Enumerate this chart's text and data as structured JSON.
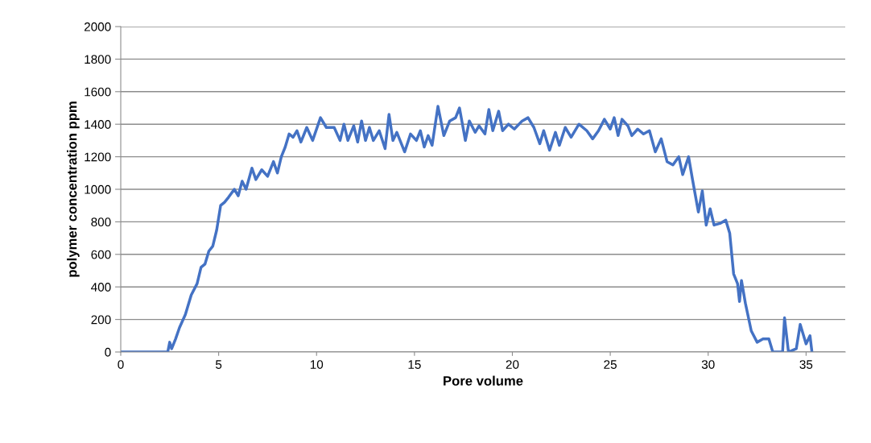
{
  "chart_data": {
    "type": "line",
    "xlabel": "Pore volume",
    "ylabel": "polymer concentration ppm",
    "xlim": [
      0,
      37
    ],
    "ylim": [
      0,
      2000
    ],
    "xticks": [
      0,
      5,
      10,
      15,
      20,
      25,
      30,
      35
    ],
    "yticks": [
      0,
      200,
      400,
      600,
      800,
      1000,
      1200,
      1400,
      1600,
      1800,
      2000
    ],
    "grid": "y",
    "legend": false,
    "series": [
      {
        "color": "#4472c4",
        "x": [
          0,
          2.4,
          2.5,
          2.6,
          2.8,
          3.0,
          3.3,
          3.6,
          3.9,
          4.1,
          4.3,
          4.5,
          4.7,
          4.9,
          5.1,
          5.3,
          5.5,
          5.8,
          6.0,
          6.2,
          6.4,
          6.7,
          6.9,
          7.2,
          7.5,
          7.8,
          8.0,
          8.2,
          8.4,
          8.6,
          8.8,
          9.0,
          9.2,
          9.5,
          9.8,
          10.2,
          10.5,
          10.9,
          11.2,
          11.4,
          11.6,
          11.9,
          12.1,
          12.3,
          12.5,
          12.7,
          12.9,
          13.2,
          13.5,
          13.7,
          13.9,
          14.1,
          14.5,
          14.8,
          15.1,
          15.3,
          15.5,
          15.7,
          15.9,
          16.2,
          16.5,
          16.8,
          17.1,
          17.3,
          17.6,
          17.8,
          18.1,
          18.3,
          18.6,
          18.8,
          19.0,
          19.3,
          19.5,
          19.8,
          20.1,
          20.5,
          20.8,
          21.1,
          21.4,
          21.6,
          21.9,
          22.2,
          22.4,
          22.7,
          23.0,
          23.4,
          23.8,
          24.1,
          24.4,
          24.7,
          25.0,
          25.2,
          25.4,
          25.6,
          25.9,
          26.1,
          26.4,
          26.7,
          27.0,
          27.3,
          27.6,
          27.9,
          28.2,
          28.5,
          28.7,
          29.0,
          29.2,
          29.5,
          29.7,
          29.9,
          30.1,
          30.3,
          30.6,
          30.9,
          31.1,
          31.3,
          31.5,
          31.6,
          31.7,
          31.9,
          32.2,
          32.5,
          32.8,
          33.1,
          33.3,
          33.8,
          33.9,
          34.1,
          34.5,
          34.7,
          35.0,
          35.2,
          35.3
        ],
        "values": [
          0,
          0,
          60,
          20,
          80,
          150,
          230,
          350,
          420,
          520,
          540,
          620,
          650,
          750,
          900,
          920,
          950,
          1000,
          960,
          1050,
          1000,
          1130,
          1060,
          1120,
          1080,
          1170,
          1100,
          1200,
          1260,
          1340,
          1320,
          1360,
          1290,
          1380,
          1300,
          1440,
          1380,
          1380,
          1300,
          1400,
          1300,
          1390,
          1290,
          1420,
          1300,
          1380,
          1300,
          1360,
          1250,
          1460,
          1300,
          1350,
          1230,
          1340,
          1300,
          1360,
          1260,
          1330,
          1270,
          1510,
          1330,
          1420,
          1440,
          1500,
          1300,
          1420,
          1350,
          1390,
          1340,
          1490,
          1360,
          1480,
          1360,
          1400,
          1370,
          1420,
          1440,
          1380,
          1280,
          1360,
          1240,
          1350,
          1270,
          1380,
          1320,
          1400,
          1360,
          1310,
          1360,
          1430,
          1370,
          1440,
          1330,
          1430,
          1390,
          1330,
          1370,
          1340,
          1360,
          1230,
          1310,
          1170,
          1150,
          1200,
          1090,
          1200,
          1060,
          860,
          990,
          780,
          880,
          780,
          790,
          810,
          730,
          480,
          420,
          310,
          440,
          300,
          130,
          60,
          80,
          80,
          0,
          0,
          210,
          0,
          20,
          170,
          50,
          100,
          0
        ]
      }
    ]
  }
}
